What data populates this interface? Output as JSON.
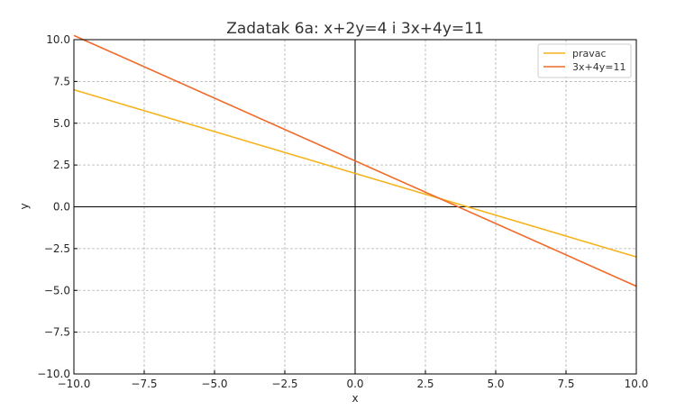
{
  "chart_data": {
    "type": "line",
    "title": "Zadatak 6a: x+2y=4 i 3x+4y=11",
    "xlabel": "x",
    "ylabel": "y",
    "xlim": [
      -10,
      10
    ],
    "ylim": [
      -10,
      10
    ],
    "xticks": [
      -10,
      -7.5,
      -5,
      -2.5,
      0,
      2.5,
      5,
      7.5,
      10
    ],
    "yticks": [
      -10,
      -7.5,
      -5,
      -2.5,
      0,
      2.5,
      5,
      7.5,
      10
    ],
    "xtick_labels": [
      "−10.0",
      "−7.5",
      "−5.0",
      "−2.5",
      "0.0",
      "2.5",
      "5.0",
      "7.5",
      "10.0"
    ],
    "ytick_labels": [
      "−10.0",
      "−7.5",
      "−5.0",
      "−2.5",
      "0.0",
      "2.5",
      "5.0",
      "7.5",
      "10.0"
    ],
    "grid": true,
    "legend_position": "top-right",
    "series": [
      {
        "name": "pravac",
        "color": "#f5b21b",
        "x": [
          -10,
          10
        ],
        "y": [
          7,
          -3
        ]
      },
      {
        "name": "3x+4y=11",
        "color": "#f06a2a",
        "x": [
          -10,
          10
        ],
        "y": [
          10.25,
          -4.75
        ]
      }
    ]
  }
}
